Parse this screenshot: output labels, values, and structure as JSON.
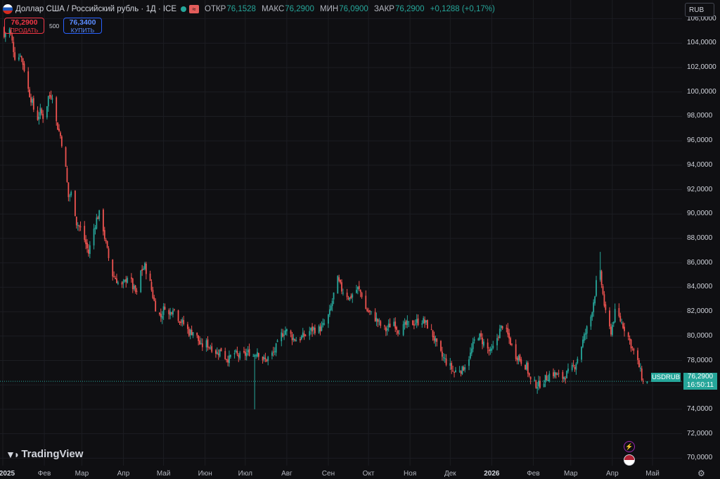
{
  "header": {
    "title": "Доллар США / Российский рубль · 1Д · ICE",
    "open_label": "ОТКР",
    "open": "76,1528",
    "high_label": "МАКС",
    "high": "76,2900",
    "low_label": "МИН",
    "low": "76,0900",
    "close_label": "ЗАКР",
    "close": "76,2900",
    "change": "+0,1288 (+0,17%)"
  },
  "trade": {
    "sell_price": "76,2900",
    "sell_label": "ПРОДАТЬ",
    "spread": "500",
    "buy_price": "76,3400",
    "buy_label": "КУПИТЬ"
  },
  "currency_selector": "RUB",
  "last_price": {
    "symbol": "USDRUB",
    "price": "76,2900",
    "countdown": "16:50:11"
  },
  "branding": {
    "logo_text": "TradingView"
  },
  "colors": {
    "up": "#26a69a",
    "down": "#ef5350",
    "background": "#0f0f12"
  },
  "chart_data": {
    "type": "candlestick",
    "symbol": "USDRUB",
    "interval": "1D",
    "ylim": [
      69.5,
      106.5
    ],
    "y_ticks": [
      "106,0000",
      "104,0000",
      "102,0000",
      "100,0000",
      "98,0000",
      "96,0000",
      "94,0000",
      "92,0000",
      "90,0000",
      "88,0000",
      "86,0000",
      "84,0000",
      "82,0000",
      "80,0000",
      "78,0000",
      "76,0000",
      "74,0000",
      "72,0000",
      "70,0000"
    ],
    "x_ticks": [
      {
        "label": "2025",
        "date": "2025-01-01",
        "bold": true
      },
      {
        "label": "Фев",
        "date": "2025-02-01"
      },
      {
        "label": "Мар",
        "date": "2025-03-01"
      },
      {
        "label": "Апр",
        "date": "2025-04-01"
      },
      {
        "label": "Май",
        "date": "2025-05-01"
      },
      {
        "label": "Июн",
        "date": "2025-06-01"
      },
      {
        "label": "Июл",
        "date": "2025-07-01"
      },
      {
        "label": "Авг",
        "date": "2025-08-01"
      },
      {
        "label": "Сен",
        "date": "2025-09-01"
      },
      {
        "label": "Окт",
        "date": "2025-10-01"
      },
      {
        "label": "Ноя",
        "date": "2025-11-01"
      },
      {
        "label": "Дек",
        "date": "2025-12-01"
      },
      {
        "label": "2026",
        "date": "2026-01-01",
        "bold": true
      },
      {
        "label": "Фев",
        "date": "2026-02-01"
      },
      {
        "label": "Мар",
        "date": "2026-03-01"
      },
      {
        "label": "Апр",
        "date": "2026-04-01"
      },
      {
        "label": "Май",
        "date": "2026-05-01"
      }
    ],
    "close_series": [
      [
        "2025-01-02",
        104.5
      ],
      [
        "2025-01-05",
        105.6
      ],
      [
        "2025-01-08",
        104.1
      ],
      [
        "2025-01-11",
        102.3
      ],
      [
        "2025-01-14",
        103.2
      ],
      [
        "2025-01-17",
        101.9
      ],
      [
        "2025-01-20",
        100.2
      ],
      [
        "2025-01-23",
        99.1
      ],
      [
        "2025-01-26",
        97.6
      ],
      [
        "2025-01-29",
        98.4
      ],
      [
        "2025-02-01",
        97.8
      ],
      [
        "2025-02-04",
        99.6
      ],
      [
        "2025-02-07",
        99.8
      ],
      [
        "2025-02-10",
        97.5
      ],
      [
        "2025-02-13",
        96.4
      ],
      [
        "2025-02-16",
        94.8
      ],
      [
        "2025-02-19",
        91.4
      ],
      [
        "2025-02-22",
        91.8
      ],
      [
        "2025-02-25",
        89.3
      ],
      [
        "2025-02-28",
        88.8
      ],
      [
        "2025-03-03",
        87.9
      ],
      [
        "2025-03-06",
        86.8
      ],
      [
        "2025-03-09",
        88.4
      ],
      [
        "2025-03-12",
        89.6
      ],
      [
        "2025-03-15",
        90.2
      ],
      [
        "2025-03-18",
        88.1
      ],
      [
        "2025-03-21",
        86.4
      ],
      [
        "2025-03-24",
        85.0
      ],
      [
        "2025-03-27",
        84.6
      ],
      [
        "2025-03-30",
        83.9
      ],
      [
        "2025-04-02",
        84.4
      ],
      [
        "2025-04-05",
        85.2
      ],
      [
        "2025-04-08",
        84.0
      ],
      [
        "2025-04-11",
        83.4
      ],
      [
        "2025-04-14",
        85.3
      ],
      [
        "2025-04-17",
        85.7
      ],
      [
        "2025-04-20",
        84.8
      ],
      [
        "2025-04-23",
        83.3
      ],
      [
        "2025-04-26",
        81.9
      ],
      [
        "2025-04-29",
        81.6
      ],
      [
        "2025-05-02",
        82.5
      ],
      [
        "2025-05-05",
        81.7
      ],
      [
        "2025-05-08",
        82.4
      ],
      [
        "2025-05-11",
        81.7
      ],
      [
        "2025-05-14",
        81.2
      ],
      [
        "2025-05-17",
        80.9
      ],
      [
        "2025-05-20",
        80.3
      ],
      [
        "2025-05-23",
        80.4
      ],
      [
        "2025-05-26",
        79.9
      ],
      [
        "2025-05-29",
        79.1
      ],
      [
        "2025-06-01",
        79.5
      ],
      [
        "2025-06-04",
        79.2
      ],
      [
        "2025-06-07",
        79.0
      ],
      [
        "2025-06-10",
        78.6
      ],
      [
        "2025-06-13",
        78.9
      ],
      [
        "2025-06-16",
        78.3
      ],
      [
        "2025-06-19",
        78.1
      ],
      [
        "2025-06-22",
        78.7
      ],
      [
        "2025-06-25",
        78.4
      ],
      [
        "2025-06-28",
        78.3
      ],
      [
        "2025-07-01",
        78.5
      ],
      [
        "2025-07-04",
        78.7
      ],
      [
        "2025-07-07",
        78.4
      ],
      [
        "2025-07-10",
        78.8
      ],
      [
        "2025-07-13",
        78.2
      ],
      [
        "2025-07-16",
        78.0
      ],
      [
        "2025-07-19",
        78.3
      ],
      [
        "2025-07-22",
        78.6
      ],
      [
        "2025-07-25",
        79.3
      ],
      [
        "2025-07-28",
        80.1
      ],
      [
        "2025-07-31",
        80.5
      ],
      [
        "2025-08-03",
        80.2
      ],
      [
        "2025-08-06",
        79.8
      ],
      [
        "2025-08-09",
        79.7
      ],
      [
        "2025-08-12",
        79.9
      ],
      [
        "2025-08-15",
        80.1
      ],
      [
        "2025-08-18",
        80.4
      ],
      [
        "2025-08-21",
        80.6
      ],
      [
        "2025-08-24",
        80.5
      ],
      [
        "2025-08-27",
        80.7
      ],
      [
        "2025-08-30",
        81.1
      ],
      [
        "2025-09-02",
        81.9
      ],
      [
        "2025-09-05",
        83.4
      ],
      [
        "2025-09-08",
        84.6
      ],
      [
        "2025-09-11",
        83.8
      ],
      [
        "2025-09-14",
        83.5
      ],
      [
        "2025-09-17",
        83.1
      ],
      [
        "2025-09-20",
        83.6
      ],
      [
        "2025-09-23",
        83.9
      ],
      [
        "2025-09-26",
        83.4
      ],
      [
        "2025-09-29",
        82.2
      ],
      [
        "2025-10-02",
        81.9
      ],
      [
        "2025-10-05",
        81.6
      ],
      [
        "2025-10-08",
        81.2
      ],
      [
        "2025-10-11",
        80.7
      ],
      [
        "2025-10-14",
        80.5
      ],
      [
        "2025-10-17",
        80.9
      ],
      [
        "2025-10-20",
        81.2
      ],
      [
        "2025-10-23",
        80.5
      ],
      [
        "2025-10-26",
        80.6
      ],
      [
        "2025-10-29",
        80.9
      ],
      [
        "2025-11-01",
        81.0
      ],
      [
        "2025-11-04",
        81.1
      ],
      [
        "2025-11-07",
        81.2
      ],
      [
        "2025-11-10",
        81.3
      ],
      [
        "2025-11-13",
        81.0
      ],
      [
        "2025-11-16",
        80.6
      ],
      [
        "2025-11-19",
        79.8
      ],
      [
        "2025-11-22",
        78.9
      ],
      [
        "2025-11-25",
        78.3
      ],
      [
        "2025-11-28",
        77.9
      ],
      [
        "2025-12-01",
        77.5
      ],
      [
        "2025-12-04",
        77.0
      ],
      [
        "2025-12-07",
        77.4
      ],
      [
        "2025-12-10",
        77.2
      ],
      [
        "2025-12-13",
        77.9
      ],
      [
        "2025-12-16",
        78.5
      ],
      [
        "2025-12-19",
        79.6
      ],
      [
        "2025-12-22",
        80.1
      ],
      [
        "2025-12-25",
        79.6
      ],
      [
        "2025-12-28",
        79.1
      ],
      [
        "2025-12-31",
        78.6
      ],
      [
        "2026-01-03",
        79.2
      ],
      [
        "2026-01-06",
        80.2
      ],
      [
        "2026-01-09",
        80.9
      ],
      [
        "2026-01-12",
        80.3
      ],
      [
        "2026-01-15",
        79.5
      ],
      [
        "2026-01-18",
        78.5
      ],
      [
        "2026-01-21",
        78.3
      ],
      [
        "2026-01-24",
        77.8
      ],
      [
        "2026-01-27",
        77.5
      ],
      [
        "2026-01-30",
        76.3
      ],
      [
        "2026-02-02",
        76.1
      ],
      [
        "2026-02-05",
        76.0
      ],
      [
        "2026-02-08",
        76.3
      ],
      [
        "2026-02-11",
        76.6
      ],
      [
        "2026-02-14",
        77.0
      ],
      [
        "2026-02-17",
        76.9
      ],
      [
        "2026-02-20",
        76.7
      ],
      [
        "2026-02-23",
        76.6
      ],
      [
        "2026-02-26",
        76.9
      ],
      [
        "2026-03-01",
        77.2
      ],
      [
        "2026-03-04",
        77.6
      ],
      [
        "2026-03-07",
        78.5
      ],
      [
        "2026-03-10",
        79.6
      ],
      [
        "2026-03-13",
        80.6
      ],
      [
        "2026-03-16",
        81.6
      ],
      [
        "2026-03-19",
        83.5
      ],
      [
        "2026-03-22",
        85.9
      ],
      [
        "2026-03-25",
        83.4
      ],
      [
        "2026-03-28",
        81.0
      ],
      [
        "2026-03-31",
        80.4
      ],
      [
        "2026-04-03",
        81.9
      ],
      [
        "2026-04-06",
        81.5
      ],
      [
        "2026-04-09",
        80.9
      ],
      [
        "2026-04-12",
        80.2
      ],
      [
        "2026-04-15",
        79.3
      ],
      [
        "2026-04-18",
        78.4
      ],
      [
        "2026-04-21",
        77.5
      ],
      [
        "2026-04-24",
        76.2
      ],
      [
        "2026-04-27",
        76.29
      ]
    ],
    "notable_extremes": [
      {
        "date": "2025-07-08",
        "low": 74.0,
        "high": 77.8
      },
      {
        "date": "2026-03-22",
        "low": 84.8,
        "high": 86.9
      }
    ],
    "last_price": 76.29
  }
}
